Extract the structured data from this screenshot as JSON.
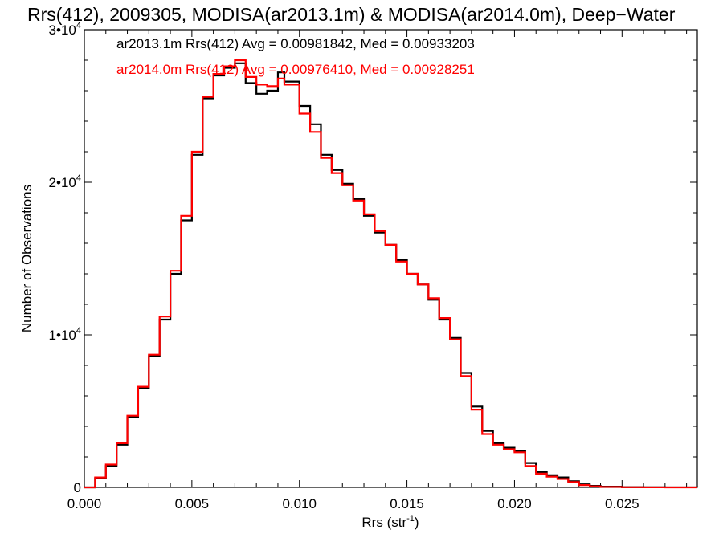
{
  "chart_data": {
    "type": "line",
    "title": "Rrs(412), 2009305, MODISA(ar2013.1m) & MODISA(ar2014.0m), Deep−Water",
    "xlabel": "Rrs (str",
    "xlabel_sup": "-1",
    "xlabel_end": ")",
    "ylabel": "Number of Observations",
    "xlim": [
      0.0,
      0.0285
    ],
    "ylim": [
      0,
      30000
    ],
    "x_ticks": [
      0.0,
      0.005,
      0.01,
      0.015,
      0.02,
      0.025
    ],
    "x_tick_labels": [
      "0.000",
      "0.005",
      "0.010",
      "0.015",
      "0.020",
      "0.025"
    ],
    "y_ticks": [
      0,
      10000,
      20000,
      30000
    ],
    "y_tick_labels": [
      {
        "base": "0",
        "sup": ""
      },
      {
        "base": "1•10",
        "sup": "4"
      },
      {
        "base": "2•10",
        "sup": "4"
      },
      {
        "base": "3•10",
        "sup": "4"
      }
    ],
    "grid": false,
    "legend_position": "top-left",
    "series": [
      {
        "name": "ar2013.1m",
        "label": "ar2013.1m Rrs(412) Avg = 0.00981842, Med = 0.00933203",
        "color": "#000000",
        "points": [
          [
            0.0,
            0
          ],
          [
            0.0005,
            600
          ],
          [
            0.001,
            1400
          ],
          [
            0.0015,
            2800
          ],
          [
            0.002,
            4600
          ],
          [
            0.0025,
            6500
          ],
          [
            0.003,
            8600
          ],
          [
            0.0035,
            11000
          ],
          [
            0.004,
            14000
          ],
          [
            0.0045,
            17500
          ],
          [
            0.005,
            21800
          ],
          [
            0.0055,
            25500
          ],
          [
            0.006,
            27000
          ],
          [
            0.0065,
            27500
          ],
          [
            0.007,
            27800
          ],
          [
            0.0075,
            26500
          ],
          [
            0.008,
            25800
          ],
          [
            0.0085,
            26000
          ],
          [
            0.009,
            27200
          ],
          [
            0.0093,
            26600
          ],
          [
            0.01,
            25000
          ],
          [
            0.0105,
            23800
          ],
          [
            0.011,
            21800
          ],
          [
            0.0115,
            20800
          ],
          [
            0.012,
            19900
          ],
          [
            0.0125,
            18900
          ],
          [
            0.013,
            17800
          ],
          [
            0.0135,
            16700
          ],
          [
            0.014,
            15900
          ],
          [
            0.0145,
            14900
          ],
          [
            0.015,
            14000
          ],
          [
            0.0155,
            13300
          ],
          [
            0.016,
            12300
          ],
          [
            0.0165,
            11000
          ],
          [
            0.017,
            9800
          ],
          [
            0.0175,
            7500
          ],
          [
            0.018,
            5300
          ],
          [
            0.0185,
            3700
          ],
          [
            0.019,
            2900
          ],
          [
            0.0195,
            2600
          ],
          [
            0.02,
            2400
          ],
          [
            0.0205,
            1600
          ],
          [
            0.021,
            1000
          ],
          [
            0.0215,
            800
          ],
          [
            0.022,
            650
          ],
          [
            0.0225,
            400
          ],
          [
            0.023,
            200
          ],
          [
            0.0235,
            100
          ],
          [
            0.024,
            50
          ],
          [
            0.025,
            15
          ],
          [
            0.026,
            5
          ],
          [
            0.027,
            2
          ],
          [
            0.0285,
            0
          ]
        ]
      },
      {
        "name": "ar2014.0m",
        "label": "ar2014.0m Rrs(412) Avg = 0.00976410, Med = 0.00928251",
        "color": "#ff0000",
        "points": [
          [
            0.0,
            0
          ],
          [
            0.0005,
            650
          ],
          [
            0.001,
            1500
          ],
          [
            0.0015,
            2900
          ],
          [
            0.002,
            4700
          ],
          [
            0.0025,
            6600
          ],
          [
            0.003,
            8700
          ],
          [
            0.0035,
            11200
          ],
          [
            0.004,
            14200
          ],
          [
            0.0045,
            17800
          ],
          [
            0.005,
            22000
          ],
          [
            0.0055,
            25600
          ],
          [
            0.006,
            27100
          ],
          [
            0.0065,
            27600
          ],
          [
            0.007,
            28000
          ],
          [
            0.0075,
            26900
          ],
          [
            0.008,
            26400
          ],
          [
            0.0085,
            26300
          ],
          [
            0.009,
            26800
          ],
          [
            0.0093,
            26400
          ],
          [
            0.01,
            24500
          ],
          [
            0.0105,
            23300
          ],
          [
            0.011,
            21600
          ],
          [
            0.0115,
            20600
          ],
          [
            0.012,
            19800
          ],
          [
            0.0125,
            18800
          ],
          [
            0.013,
            17900
          ],
          [
            0.0135,
            16800
          ],
          [
            0.014,
            15900
          ],
          [
            0.0145,
            14800
          ],
          [
            0.015,
            14000
          ],
          [
            0.0155,
            13300
          ],
          [
            0.016,
            12400
          ],
          [
            0.0165,
            11100
          ],
          [
            0.017,
            9700
          ],
          [
            0.0175,
            7300
          ],
          [
            0.018,
            5100
          ],
          [
            0.0185,
            3500
          ],
          [
            0.019,
            2800
          ],
          [
            0.0195,
            2500
          ],
          [
            0.02,
            2300
          ],
          [
            0.0205,
            1400
          ],
          [
            0.021,
            900
          ],
          [
            0.0215,
            700
          ],
          [
            0.022,
            550
          ],
          [
            0.0225,
            350
          ],
          [
            0.023,
            150
          ],
          [
            0.0235,
            70
          ],
          [
            0.024,
            30
          ],
          [
            0.025,
            10
          ],
          [
            0.026,
            3
          ],
          [
            0.027,
            1
          ],
          [
            0.0285,
            0
          ]
        ]
      }
    ]
  }
}
